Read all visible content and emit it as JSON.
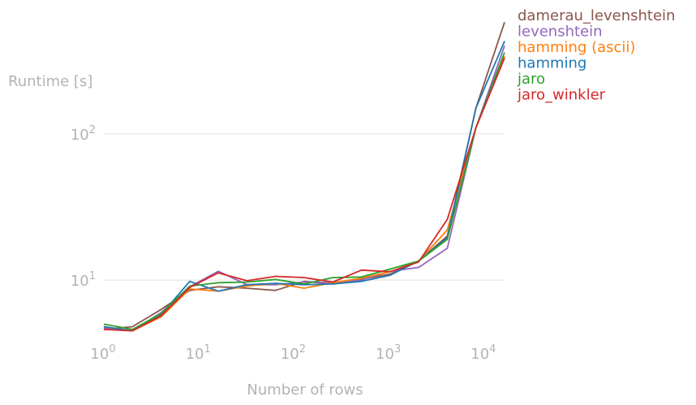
{
  "chart_data": {
    "type": "line",
    "xlabel": "Number of rows",
    "ylabel": "Runtime [s]",
    "xscale": "log",
    "yscale": "log",
    "xlim": [
      1,
      16384
    ],
    "ylim": [
      4.2,
      560
    ],
    "x_ticks": [
      {
        "value": 1,
        "base": "10",
        "exp": "0"
      },
      {
        "value": 10,
        "base": "10",
        "exp": "1"
      },
      {
        "value": 100,
        "base": "10",
        "exp": "2"
      },
      {
        "value": 1000,
        "base": "10",
        "exp": "3"
      },
      {
        "value": 10000,
        "base": "10",
        "exp": "4"
      }
    ],
    "y_ticks": [
      {
        "value": 10,
        "base": "10",
        "exp": "1"
      },
      {
        "value": 100,
        "base": "10",
        "exp": "2"
      }
    ],
    "grid": "horizontal",
    "legend_position": "top-right outside",
    "x": [
      1,
      2,
      4,
      8,
      16,
      32,
      64,
      128,
      256,
      512,
      1024,
      2048,
      4096,
      8192,
      16384
    ],
    "series": [
      {
        "name": "damerau_levenshtein",
        "color": "#8c564b",
        "values": [
          4.6,
          4.8,
          6.3,
          8.5,
          9.0,
          8.8,
          8.5,
          9.8,
          9.4,
          10.1,
          11.0,
          13.5,
          20,
          150,
          580
        ]
      },
      {
        "name": "levenshtein",
        "color": "#9467bd",
        "values": [
          4.7,
          4.5,
          6.0,
          9.0,
          11.5,
          9.3,
          9.3,
          9.7,
          9.6,
          10.0,
          11.5,
          12.2,
          16.5,
          110,
          400
        ]
      },
      {
        "name": "hamming (ascii)",
        "color": "#ff7f0e",
        "values": [
          4.8,
          4.5,
          5.6,
          8.7,
          8.4,
          9.1,
          9.5,
          8.8,
          9.6,
          10.3,
          11.4,
          13.5,
          22,
          110,
          340
        ]
      },
      {
        "name": "hamming",
        "color": "#1f77b4",
        "values": [
          4.8,
          4.5,
          5.8,
          9.8,
          8.4,
          9.3,
          9.5,
          9.3,
          9.4,
          9.8,
          10.8,
          13.5,
          19.5,
          150,
          430
        ]
      },
      {
        "name": "jaro",
        "color": "#2ca02c",
        "values": [
          5.0,
          4.6,
          5.9,
          9.1,
          9.6,
          9.7,
          10.1,
          9.4,
          10.4,
          10.5,
          11.9,
          13.5,
          19,
          110,
          360
        ]
      },
      {
        "name": "jaro_winkler",
        "color": "#d62728",
        "values": [
          4.6,
          4.5,
          5.7,
          8.9,
          11.2,
          9.9,
          10.6,
          10.4,
          9.7,
          11.7,
          11.4,
          13.3,
          26,
          110,
          330
        ]
      }
    ]
  }
}
